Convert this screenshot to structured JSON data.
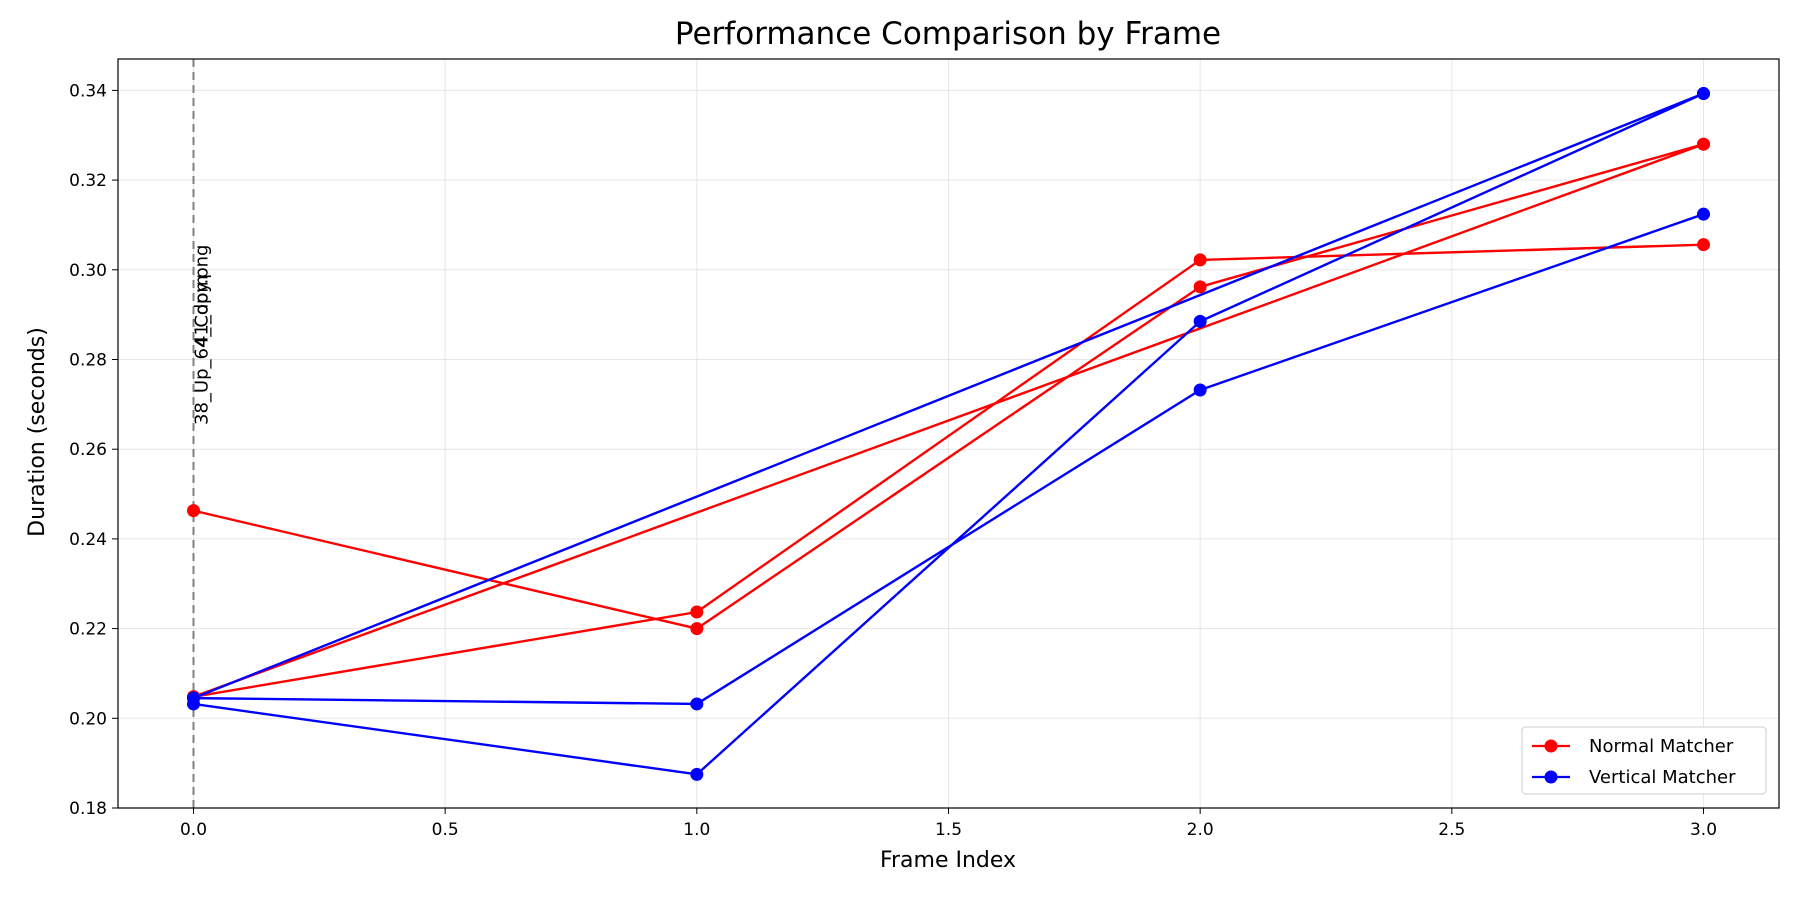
{
  "chart_data": {
    "type": "line",
    "title": "Performance Comparison by Frame",
    "xlabel": "Frame Index",
    "ylabel": "Duration (seconds)",
    "xlim": [
      -0.15,
      3.15
    ],
    "ylim": [
      0.18,
      0.347
    ],
    "x_ticks": [
      0.0,
      0.5,
      1.0,
      1.5,
      2.0,
      2.5,
      3.0
    ],
    "x_tick_labels": [
      "0.0",
      "0.5",
      "1.0",
      "1.5",
      "2.0",
      "2.5",
      "3.0"
    ],
    "y_ticks": [
      0.18,
      0.2,
      0.22,
      0.24,
      0.26,
      0.28,
      0.3,
      0.32,
      0.34
    ],
    "y_tick_labels": [
      "0.18",
      "0.20",
      "0.22",
      "0.24",
      "0.26",
      "0.28",
      "0.30",
      "0.32",
      "0.34"
    ],
    "grid": true,
    "legend_position": "lower-right",
    "legend": [
      {
        "name": "Normal Matcher",
        "color": "#ff0000"
      },
      {
        "name": "Vertical Matcher",
        "color": "#0000ff"
      }
    ],
    "annotations": [
      {
        "x": 0,
        "text": "38_Up_64_Copy.png",
        "style": "dashed-vertical-line"
      },
      {
        "x": 0,
        "text": "41_dom",
        "style": "overlapping-label"
      }
    ],
    "series": [
      {
        "group": "Normal Matcher",
        "color": "#ff0000",
        "x": [
          0,
          1,
          2,
          3
        ],
        "values": [
          0.2463,
          0.22,
          0.2962,
          0.328
        ]
      },
      {
        "group": "Normal Matcher",
        "color": "#ff0000",
        "x": [
          0,
          1,
          2,
          3
        ],
        "values": [
          0.2048,
          0.2237,
          0.3022,
          0.3056
        ]
      },
      {
        "group": "Normal Matcher",
        "color": "#ff0000",
        "x": [
          0,
          3
        ],
        "values": [
          0.2048,
          0.328
        ]
      },
      {
        "group": "Vertical Matcher",
        "color": "#0000ff",
        "x": [
          0,
          1,
          2,
          3
        ],
        "values": [
          0.2045,
          0.2032,
          0.2732,
          0.3124
        ]
      },
      {
        "group": "Vertical Matcher",
        "color": "#0000ff",
        "x": [
          0,
          1,
          2,
          3
        ],
        "values": [
          0.2032,
          0.1875,
          0.2885,
          0.3393
        ]
      },
      {
        "group": "Vertical Matcher",
        "color": "#0000ff",
        "x": [
          0,
          3
        ],
        "values": [
          0.2045,
          0.3393
        ]
      }
    ]
  }
}
